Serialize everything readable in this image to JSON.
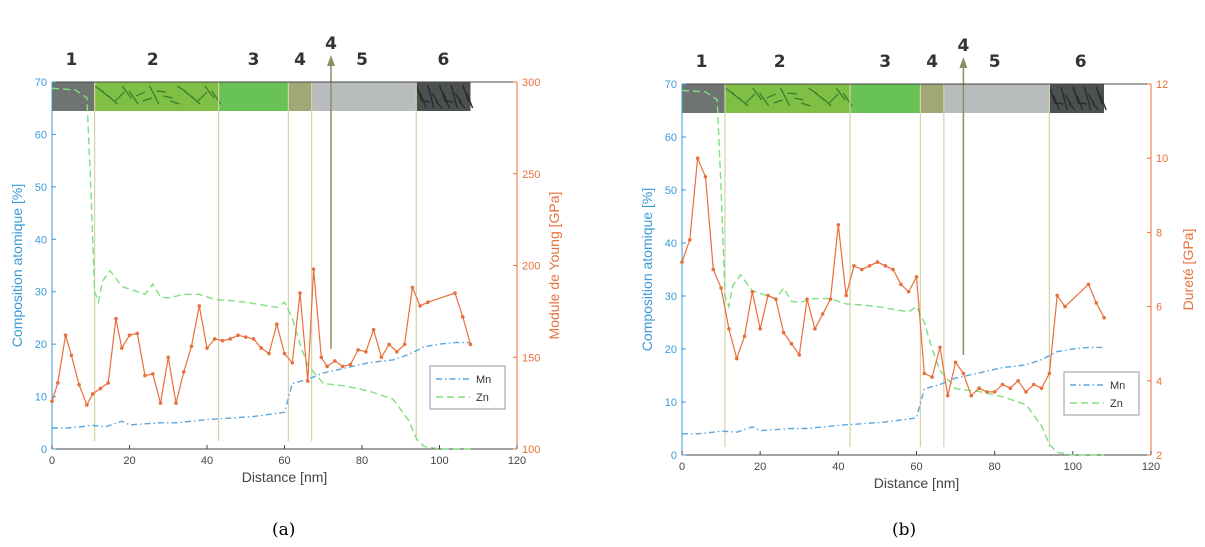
{
  "chart_data": [
    {
      "type": "line",
      "panel": "(a)",
      "caption": "(a)",
      "xlabel": "Distance [nm]",
      "ylabel_left": "Composition atomique [%]",
      "ylabel_right": "Module de Young [GPa]",
      "xlim": [
        0,
        120
      ],
      "ylim_left": [
        0,
        70
      ],
      "ylim_right": [
        100,
        300
      ],
      "x_ticks": [
        0,
        20,
        40,
        60,
        80,
        100,
        120
      ],
      "y_ticks_left": [
        0,
        10,
        20,
        30,
        40,
        50,
        60,
        70
      ],
      "y_ticks_right": [
        100,
        150,
        200,
        250,
        300
      ],
      "region_labels": [
        {
          "label": "1",
          "x": 5
        },
        {
          "label": "2",
          "x": 26
        },
        {
          "label": "3",
          "x": 52
        },
        {
          "label": "4",
          "x": 64
        },
        {
          "label": "5",
          "x": 80
        },
        {
          "label": "6",
          "x": 101
        }
      ],
      "arrow_label": {
        "label": "4",
        "x": 72
      },
      "boundaries": [
        11,
        43,
        61,
        67,
        94
      ],
      "legend": {
        "position": "bottom-right",
        "entries": [
          "Mn",
          "Zn"
        ]
      },
      "series": [
        {
          "name": "Mn",
          "axis": "left",
          "style": "dash-dot",
          "color": "#5aa7df",
          "x": [
            0,
            4,
            8,
            10,
            14,
            18,
            20,
            24,
            28,
            32,
            36,
            40,
            44,
            48,
            52,
            56,
            60,
            62,
            66,
            70,
            76,
            82,
            88,
            92,
            96,
            100,
            104,
            108
          ],
          "y": [
            4,
            4,
            4.3,
            4.5,
            4.3,
            5.3,
            4.6,
            4.8,
            5,
            5,
            5.3,
            5.6,
            5.8,
            6,
            6.2,
            6.6,
            7,
            12.5,
            13.3,
            14.5,
            15.5,
            16.5,
            17,
            18,
            19.5,
            20,
            20.3,
            20.3
          ]
        },
        {
          "name": "Zn",
          "axis": "left",
          "style": "dashed",
          "color": "#7ee07e",
          "x": [
            0,
            6,
            9,
            10,
            11,
            12,
            13,
            15,
            18,
            22,
            24,
            26,
            28,
            30,
            34,
            38,
            42,
            46,
            50,
            54,
            58,
            60,
            62,
            64,
            66,
            70,
            76,
            82,
            88,
            92,
            94,
            96,
            100,
            104,
            108
          ],
          "y": [
            68.8,
            68.5,
            67,
            50,
            30,
            28,
            32,
            34,
            31,
            30,
            29.5,
            31.5,
            29,
            28.8,
            29.5,
            29.5,
            28.5,
            28.3,
            28,
            27.5,
            27,
            28,
            25,
            20,
            16,
            12.5,
            12,
            11,
            9.5,
            5.5,
            2,
            0.5,
            0,
            0,
            0
          ]
        },
        {
          "name": "Module de Young",
          "axis": "right",
          "style": "solid-marker",
          "color": "#e8703a",
          "x": [
            0,
            1.5,
            3.5,
            5,
            7,
            9,
            10.5,
            12.5,
            14.5,
            16.5,
            18,
            20,
            22,
            24,
            26,
            28,
            30,
            32,
            34,
            36,
            38,
            40,
            42,
            44,
            46,
            48,
            50,
            52,
            54,
            56,
            58,
            60,
            62,
            64,
            66,
            67.5,
            69.5,
            71,
            73,
            75,
            77,
            79,
            81,
            83,
            85,
            87,
            89,
            91,
            93,
            95,
            97,
            104,
            106,
            108
          ],
          "y": [
            126,
            136,
            162,
            151,
            135,
            124,
            130,
            133,
            136,
            171,
            155,
            162,
            163,
            140,
            141,
            125,
            150,
            125,
            142,
            156,
            178,
            155,
            160,
            159,
            160,
            162,
            161,
            160,
            155,
            152,
            168,
            152,
            147,
            185,
            137,
            198,
            150,
            145,
            148,
            145,
            146,
            154,
            153,
            165,
            150,
            157,
            153,
            157,
            188,
            178,
            180,
            185,
            172,
            157
          ]
        }
      ]
    },
    {
      "type": "line",
      "panel": "(b)",
      "caption": "(b)",
      "xlabel": "Distance [nm]",
      "ylabel_left": "Composition atomique [%]",
      "ylabel_right": "Dureté [GPa]",
      "xlim": [
        0,
        120
      ],
      "ylim_left": [
        0,
        70
      ],
      "ylim_right": [
        2,
        12
      ],
      "x_ticks": [
        0,
        20,
        40,
        60,
        80,
        100,
        120
      ],
      "y_ticks_left": [
        0,
        10,
        20,
        30,
        40,
        50,
        60,
        70
      ],
      "y_ticks_right": [
        2,
        4,
        6,
        8,
        10,
        12
      ],
      "region_labels": [
        {
          "label": "1",
          "x": 5
        },
        {
          "label": "2",
          "x": 25
        },
        {
          "label": "3",
          "x": 52
        },
        {
          "label": "4",
          "x": 64
        },
        {
          "label": "5",
          "x": 80
        },
        {
          "label": "6",
          "x": 102
        }
      ],
      "arrow_label": {
        "label": "4",
        "x": 72
      },
      "boundaries": [
        11,
        43,
        61,
        67,
        94
      ],
      "legend": {
        "position": "bottom-right",
        "entries": [
          "Mn",
          "Zn"
        ]
      },
      "series": [
        {
          "name": "Mn",
          "axis": "left",
          "style": "dash-dot",
          "color": "#5aa7df",
          "x": [
            0,
            4,
            8,
            10,
            14,
            18,
            20,
            24,
            28,
            32,
            36,
            40,
            44,
            48,
            52,
            56,
            60,
            62,
            66,
            70,
            76,
            82,
            88,
            92,
            96,
            100,
            104,
            108
          ],
          "y": [
            4,
            4,
            4.3,
            4.5,
            4.3,
            5.3,
            4.6,
            4.8,
            5,
            5,
            5.3,
            5.6,
            5.8,
            6,
            6.2,
            6.6,
            7,
            12.5,
            13.3,
            14.5,
            15.5,
            16.5,
            17,
            18,
            19.5,
            20,
            20.3,
            20.3
          ]
        },
        {
          "name": "Zn",
          "axis": "left",
          "style": "dashed",
          "color": "#7ee07e",
          "x": [
            0,
            6,
            9,
            10,
            11,
            12,
            13,
            15,
            18,
            22,
            24,
            26,
            28,
            30,
            34,
            38,
            42,
            46,
            50,
            54,
            58,
            60,
            62,
            64,
            66,
            70,
            76,
            82,
            88,
            92,
            94,
            96,
            100,
            104,
            108
          ],
          "y": [
            68.8,
            68.5,
            67,
            50,
            30,
            28,
            32,
            34,
            31,
            30,
            29.5,
            31.5,
            29,
            28.8,
            29.5,
            29.5,
            28.5,
            28.3,
            28,
            27.5,
            27,
            28,
            25,
            20,
            16,
            12.5,
            12,
            11,
            9.5,
            5.5,
            2,
            0.5,
            0,
            0,
            0
          ]
        },
        {
          "name": "Dureté",
          "axis": "right",
          "style": "solid-marker",
          "color": "#e8703a",
          "x": [
            0,
            2,
            4,
            6,
            8,
            10,
            12,
            14,
            16,
            18,
            20,
            22,
            24,
            26,
            28,
            30,
            32,
            34,
            36,
            38,
            40,
            42,
            44,
            46,
            48,
            50,
            52,
            54,
            56,
            58,
            60,
            62,
            64,
            66,
            68,
            70,
            72,
            74,
            76,
            78,
            80,
            82,
            84,
            86,
            88,
            90,
            92,
            94,
            96,
            98,
            104,
            106,
            108
          ],
          "y": [
            7.2,
            7.8,
            10.0,
            9.5,
            7.0,
            6.5,
            5.4,
            4.6,
            5.2,
            6.4,
            5.4,
            6.3,
            6.2,
            5.3,
            5.0,
            4.7,
            6.2,
            5.4,
            5.8,
            6.2,
            8.2,
            6.3,
            7.1,
            7.0,
            7.1,
            7.2,
            7.1,
            7.0,
            6.6,
            6.4,
            6.8,
            4.2,
            4.1,
            4.9,
            3.6,
            4.5,
            4.2,
            3.6,
            3.8,
            3.7,
            3.7,
            3.9,
            3.8,
            4.0,
            3.7,
            3.9,
            3.8,
            4.2,
            6.3,
            6.0,
            6.6,
            6.1,
            5.7
          ]
        }
      ]
    }
  ]
}
